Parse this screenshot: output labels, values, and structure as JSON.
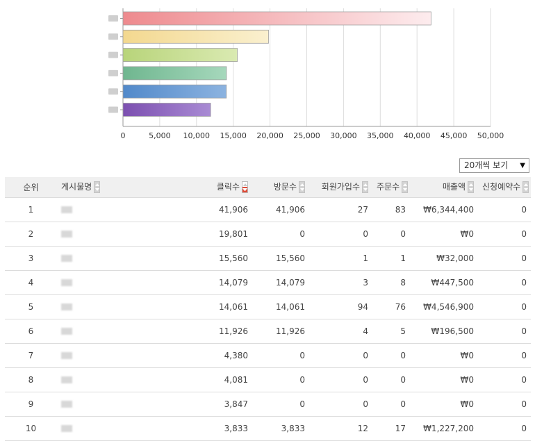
{
  "chart_data": {
    "type": "bar",
    "orientation": "horizontal",
    "categories": [
      "",
      "",
      "",
      "",
      "",
      ""
    ],
    "values": [
      41906,
      19801,
      15560,
      14079,
      14061,
      11926
    ],
    "xlim": [
      0,
      50000
    ],
    "xticks": [
      "0",
      "5,000",
      "10,000",
      "15,000",
      "20,000",
      "25,000",
      "30,000",
      "35,000",
      "40,000",
      "45,000",
      "50,000"
    ],
    "grid": true,
    "colors": [
      [
        "#ee8a8e",
        "#fdecee"
      ],
      [
        "#f3d88f",
        "#faf0cf"
      ],
      [
        "#b8d47a",
        "#daeab2"
      ],
      [
        "#6fb68f",
        "#a6d8bc"
      ],
      [
        "#5289ca",
        "#8cb3e0"
      ],
      [
        "#7c4fb0",
        "#a98bd4"
      ]
    ]
  },
  "page_size": {
    "label": "20개씩 보기",
    "arrow": "▼"
  },
  "table": {
    "headers": {
      "rank": "순위",
      "name": "게시물명",
      "clicks": "클릭수",
      "visits": "방문수",
      "signups": "회원가입수",
      "orders": "주문수",
      "sales": "매출액",
      "reservations": "신청예약수"
    },
    "rows": [
      {
        "rank": "1",
        "clicks": "41,906",
        "visits": "41,906",
        "signups": "27",
        "orders": "83",
        "sales": "₩6,344,400",
        "reservations": "0"
      },
      {
        "rank": "2",
        "clicks": "19,801",
        "visits": "0",
        "signups": "0",
        "orders": "0",
        "sales": "₩0",
        "reservations": "0"
      },
      {
        "rank": "3",
        "clicks": "15,560",
        "visits": "15,560",
        "signups": "1",
        "orders": "1",
        "sales": "₩32,000",
        "reservations": "0"
      },
      {
        "rank": "4",
        "clicks": "14,079",
        "visits": "14,079",
        "signups": "3",
        "orders": "8",
        "sales": "₩447,500",
        "reservations": "0"
      },
      {
        "rank": "5",
        "clicks": "14,061",
        "visits": "14,061",
        "signups": "94",
        "orders": "76",
        "sales": "₩4,546,900",
        "reservations": "0"
      },
      {
        "rank": "6",
        "clicks": "11,926",
        "visits": "11,926",
        "signups": "4",
        "orders": "5",
        "sales": "₩196,500",
        "reservations": "0"
      },
      {
        "rank": "7",
        "clicks": "4,380",
        "visits": "0",
        "signups": "0",
        "orders": "0",
        "sales": "₩0",
        "reservations": "0"
      },
      {
        "rank": "8",
        "clicks": "4,081",
        "visits": "0",
        "signups": "0",
        "orders": "0",
        "sales": "₩0",
        "reservations": "0"
      },
      {
        "rank": "9",
        "clicks": "3,847",
        "visits": "0",
        "signups": "0",
        "orders": "0",
        "sales": "₩0",
        "reservations": "0"
      },
      {
        "rank": "10",
        "clicks": "3,833",
        "visits": "3,833",
        "signups": "12",
        "orders": "17",
        "sales": "₩1,227,200",
        "reservations": "0"
      }
    ]
  }
}
